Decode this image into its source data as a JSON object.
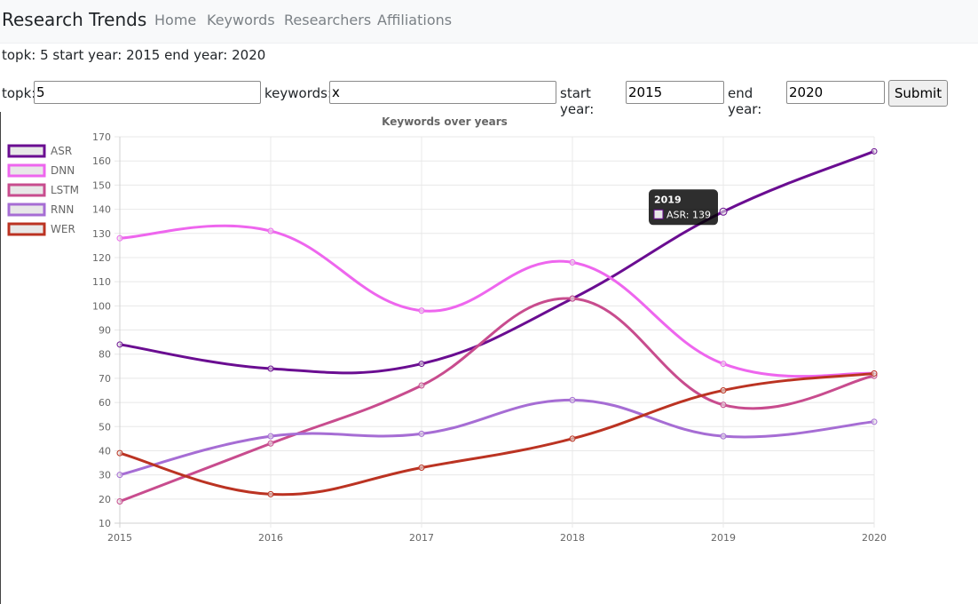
{
  "navbar": {
    "brand": "Research Trends",
    "links": [
      "Home",
      "Keywords",
      "Researchers",
      "Affiliations"
    ]
  },
  "summary": "topk: 5 start year: 2015 end year: 2020",
  "form": {
    "topk_label": "topk:",
    "topk_value": "5",
    "keywords_label": "keywords:",
    "keywords_value": "x",
    "start_label": "start year:",
    "start_value": "2015",
    "end_label": "end year:",
    "end_value": "2020",
    "submit_label": "Submit"
  },
  "chart_data": {
    "type": "line",
    "title": "Keywords over years",
    "xlabel": "",
    "ylabel": "",
    "x": [
      "2015",
      "2016",
      "2017",
      "2018",
      "2019",
      "2020"
    ],
    "ylim": [
      10,
      170
    ],
    "yticks": [
      10,
      20,
      30,
      40,
      50,
      60,
      70,
      80,
      90,
      100,
      110,
      120,
      130,
      140,
      150,
      160,
      170
    ],
    "grid": true,
    "legend_position": "left",
    "series": [
      {
        "name": "ASR",
        "color": "#6a0d91",
        "values": [
          84,
          74,
          76,
          103,
          139,
          164
        ]
      },
      {
        "name": "DNN",
        "color": "#ee66ee",
        "values": [
          128,
          131,
          98,
          118,
          76,
          72
        ]
      },
      {
        "name": "LSTM",
        "color": "#c84c8e",
        "values": [
          19,
          43,
          67,
          103,
          59,
          71
        ]
      },
      {
        "name": "RNN",
        "color": "#a66dd4",
        "values": [
          30,
          46,
          47,
          61,
          46,
          52
        ]
      },
      {
        "name": "WER",
        "color": "#bb3322",
        "values": [
          39,
          22,
          33,
          45,
          65,
          72
        ]
      }
    ],
    "tooltip": {
      "title": "2019",
      "series": "ASR",
      "value": 139,
      "text": "ASR: 139"
    }
  }
}
